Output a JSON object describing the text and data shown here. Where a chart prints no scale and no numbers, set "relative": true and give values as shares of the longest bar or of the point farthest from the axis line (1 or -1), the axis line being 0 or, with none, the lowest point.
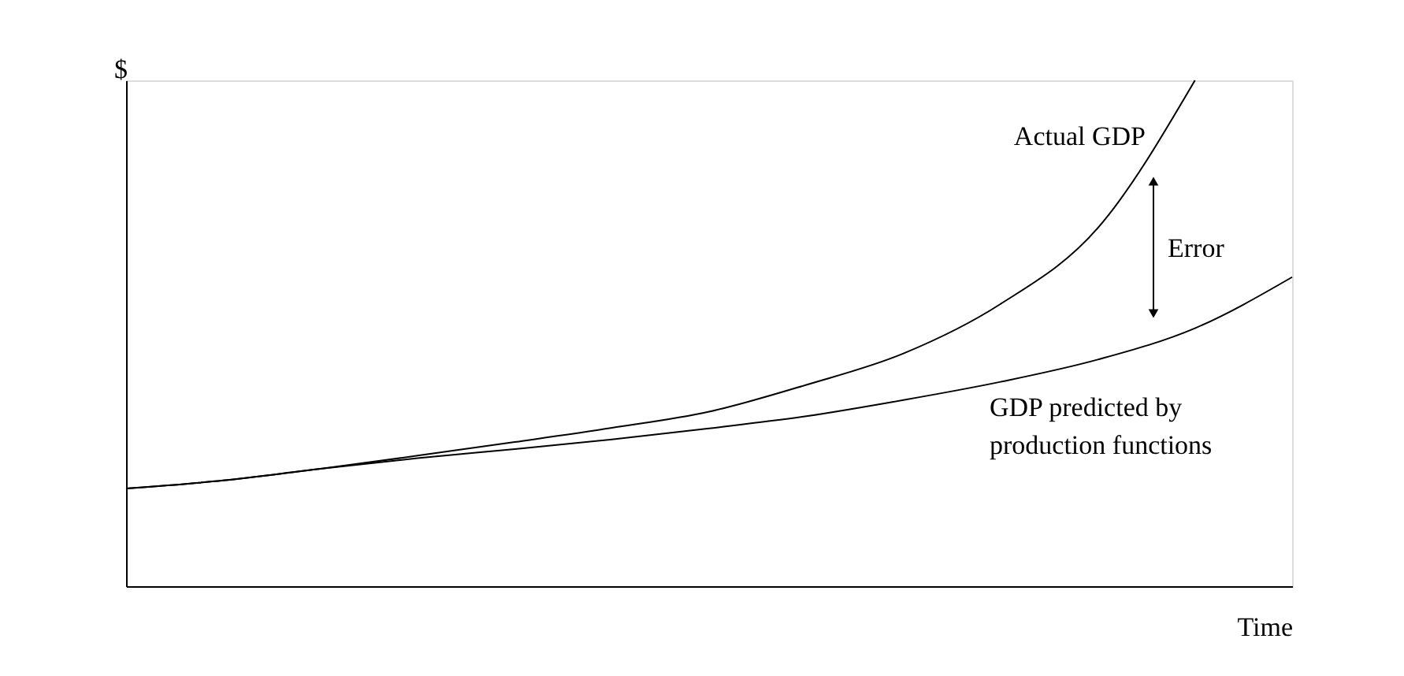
{
  "chart_data": {
    "type": "line",
    "relative": true,
    "xlabel": "Time",
    "ylabel": "$",
    "categories": [
      null,
      null,
      null,
      null,
      null,
      null,
      null,
      null,
      null,
      null,
      null,
      null,
      null
    ],
    "series": [
      {
        "name": "Actual GDP",
        "color": "#000000",
        "values": [
          0.193,
          0.209,
          0.232,
          0.258,
          0.285,
          0.313,
          0.345,
          0.398,
          0.46,
          0.558,
          0.708,
          1.0,
          null
        ]
      },
      {
        "name": "GDP predicted by\nproduction functions",
        "color": "#000000",
        "values": [
          0.193,
          0.209,
          0.232,
          0.253,
          0.271,
          0.29,
          0.312,
          0.336,
          0.368,
          0.404,
          0.448,
          0.51,
          0.611
        ]
      }
    ],
    "annotations": [
      "Error"
    ],
    "grid": false,
    "marker": "none",
    "line_style": "solid",
    "tick_labels": false
  }
}
